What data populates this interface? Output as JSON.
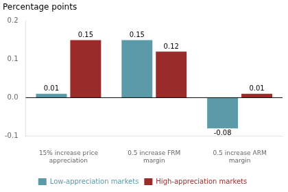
{
  "chart_data": {
    "type": "bar",
    "title": "Percentage points",
    "categories": [
      "15% increase price\nappreciation",
      "0.5 increase FRM\nmargin",
      "0.5 increase ARM\nmargin"
    ],
    "series": [
      {
        "name": "Low-appreciation markets",
        "color": "#5b9aa8",
        "values": [
          0.01,
          0.15,
          -0.08
        ]
      },
      {
        "name": "High-appreciation markets",
        "color": "#9b2b2b",
        "values": [
          0.15,
          0.12,
          0.01
        ]
      }
    ],
    "ylim": [
      -0.1,
      0.2
    ],
    "yticks": [
      -0.1,
      {
        "value": 0,
        "label": "0.0"
      },
      0.1,
      0.2
    ],
    "grid": false,
    "legend": "bottom",
    "data_labels": true
  }
}
